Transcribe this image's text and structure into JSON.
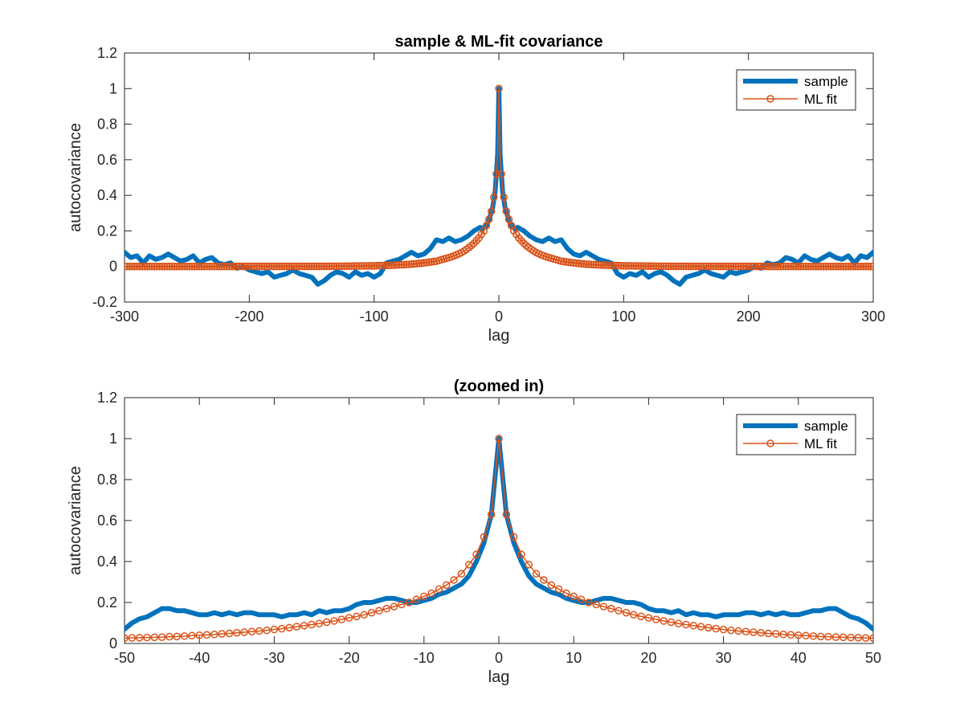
{
  "colors": {
    "sample": "#0072BD",
    "ml_fit": "#D95319",
    "axes": "#262626",
    "background": "#ffffff"
  },
  "chart_data": [
    {
      "type": "line",
      "title": "sample & ML-fit covariance",
      "xlabel": "lag",
      "ylabel": "autocovariance",
      "xlim": [
        -300,
        300
      ],
      "ylim": [
        -0.2,
        1.2
      ],
      "xticks": [
        -300,
        -200,
        -100,
        0,
        100,
        200,
        300
      ],
      "xtick_labels": [
        "-300",
        "-200",
        "-100",
        "0",
        "100",
        "200",
        "300"
      ],
      "yticks": [
        -0.2,
        0,
        0.2,
        0.4,
        0.6,
        0.8,
        1,
        1.2
      ],
      "ytick_labels": [
        "-0.2",
        "0",
        "0.2",
        "0.4",
        "0.6",
        "0.8",
        "1",
        "1.2"
      ],
      "grid": false,
      "legend_position": "top-right",
      "legend": [
        "sample",
        "ML fit"
      ],
      "series": [
        {
          "name": "sample",
          "style": "thick-line",
          "x": [
            0,
            1,
            2,
            3,
            5,
            8,
            10,
            13,
            15,
            20,
            25,
            30,
            35,
            40,
            45,
            50,
            55,
            60,
            65,
            70,
            75,
            80,
            85,
            90,
            95,
            100,
            105,
            110,
            115,
            120,
            125,
            130,
            135,
            140,
            145,
            150,
            155,
            160,
            165,
            170,
            175,
            180,
            185,
            190,
            195,
            200,
            205,
            210,
            215,
            220,
            225,
            230,
            235,
            240,
            245,
            250,
            255,
            260,
            265,
            270,
            275,
            280,
            285,
            290,
            295,
            300
          ],
          "y": [
            1.0,
            0.63,
            0.52,
            0.42,
            0.33,
            0.26,
            0.23,
            0.21,
            0.22,
            0.2,
            0.17,
            0.15,
            0.14,
            0.16,
            0.14,
            0.15,
            0.1,
            0.07,
            0.06,
            0.08,
            0.06,
            0.04,
            0.03,
            0.02,
            -0.04,
            -0.06,
            -0.04,
            -0.05,
            -0.03,
            -0.06,
            -0.04,
            -0.03,
            -0.05,
            -0.08,
            -0.1,
            -0.06,
            -0.05,
            -0.04,
            -0.02,
            -0.04,
            -0.05,
            -0.06,
            -0.03,
            -0.04,
            -0.03,
            -0.02,
            0.0,
            -0.01,
            0.02,
            0.01,
            0.02,
            0.05,
            0.04,
            0.02,
            0.06,
            0.04,
            0.03,
            0.05,
            0.07,
            0.05,
            0.04,
            0.06,
            0.02,
            0.06,
            0.05,
            0.08
          ]
        },
        {
          "name": "ML fit",
          "style": "line-circles",
          "x": [
            0,
            1,
            2,
            3,
            4,
            5,
            6,
            7,
            8,
            9,
            10,
            12,
            14,
            16,
            18,
            20,
            25,
            30,
            35,
            40,
            45,
            50,
            60,
            70,
            80,
            90,
            100,
            120,
            140,
            160,
            180,
            200,
            220,
            240,
            260,
            280,
            300
          ],
          "y": [
            1.0,
            0.63,
            0.52,
            0.44,
            0.39,
            0.34,
            0.31,
            0.28,
            0.265,
            0.25,
            0.23,
            0.2,
            0.18,
            0.16,
            0.145,
            0.13,
            0.1,
            0.078,
            0.062,
            0.05,
            0.04,
            0.03,
            0.02,
            0.013,
            0.009,
            0.006,
            0.004,
            0.002,
            0.001,
            0.0005,
            0.0003,
            0.0002,
            0.0001,
            0.0001,
            0.0,
            0.0,
            0.0
          ]
        }
      ]
    },
    {
      "type": "line",
      "title": "(zoomed in)",
      "xlabel": "lag",
      "ylabel": "autocovariance",
      "xlim": [
        -50,
        50
      ],
      "ylim": [
        0,
        1.2
      ],
      "xticks": [
        -50,
        -40,
        -30,
        -20,
        -10,
        0,
        10,
        20,
        30,
        40,
        50
      ],
      "xtick_labels": [
        "-50",
        "-40",
        "-30",
        "-20",
        "-10",
        "0",
        "10",
        "20",
        "30",
        "40",
        "50"
      ],
      "yticks": [
        0,
        0.2,
        0.4,
        0.6,
        0.8,
        1,
        1.2
      ],
      "ytick_labels": [
        "0",
        "0.2",
        "0.4",
        "0.6",
        "0.8",
        "1",
        "1.2"
      ],
      "grid": false,
      "legend_position": "top-right",
      "legend": [
        "sample",
        "ML fit"
      ],
      "series": [
        {
          "name": "sample",
          "style": "thick-line",
          "x": [
            0,
            1,
            2,
            3,
            4,
            5,
            6,
            7,
            8,
            9,
            10,
            11,
            12,
            13,
            14,
            15,
            16,
            17,
            18,
            19,
            20,
            21,
            22,
            23,
            24,
            25,
            26,
            27,
            28,
            29,
            30,
            31,
            32,
            33,
            34,
            35,
            36,
            37,
            38,
            39,
            40,
            41,
            42,
            43,
            44,
            45,
            46,
            47,
            48,
            49,
            50
          ],
          "y": [
            1.0,
            0.63,
            0.49,
            0.4,
            0.33,
            0.29,
            0.27,
            0.25,
            0.24,
            0.22,
            0.21,
            0.2,
            0.2,
            0.21,
            0.22,
            0.22,
            0.21,
            0.2,
            0.2,
            0.19,
            0.17,
            0.16,
            0.16,
            0.15,
            0.16,
            0.14,
            0.15,
            0.14,
            0.14,
            0.13,
            0.14,
            0.14,
            0.14,
            0.15,
            0.15,
            0.14,
            0.15,
            0.14,
            0.15,
            0.14,
            0.14,
            0.15,
            0.16,
            0.16,
            0.17,
            0.17,
            0.15,
            0.13,
            0.12,
            0.1,
            0.07
          ]
        },
        {
          "name": "ML fit",
          "style": "line-circles",
          "x": [
            0,
            1,
            2,
            3,
            4,
            5,
            6,
            7,
            8,
            9,
            10,
            11,
            12,
            13,
            14,
            15,
            16,
            17,
            18,
            19,
            20,
            21,
            22,
            23,
            24,
            25,
            26,
            27,
            28,
            29,
            30,
            31,
            32,
            33,
            34,
            35,
            36,
            37,
            38,
            39,
            40,
            41,
            42,
            43,
            44,
            45,
            46,
            47,
            48,
            49,
            50
          ],
          "y": [
            1.0,
            0.63,
            0.52,
            0.435,
            0.385,
            0.34,
            0.31,
            0.285,
            0.265,
            0.245,
            0.23,
            0.215,
            0.2,
            0.19,
            0.18,
            0.17,
            0.16,
            0.15,
            0.14,
            0.132,
            0.125,
            0.117,
            0.11,
            0.104,
            0.097,
            0.092,
            0.087,
            0.082,
            0.077,
            0.072,
            0.068,
            0.064,
            0.061,
            0.058,
            0.055,
            0.052,
            0.049,
            0.047,
            0.044,
            0.042,
            0.04,
            0.038,
            0.036,
            0.034,
            0.033,
            0.031,
            0.03,
            0.029,
            0.028,
            0.027,
            0.026
          ]
        }
      ]
    }
  ]
}
